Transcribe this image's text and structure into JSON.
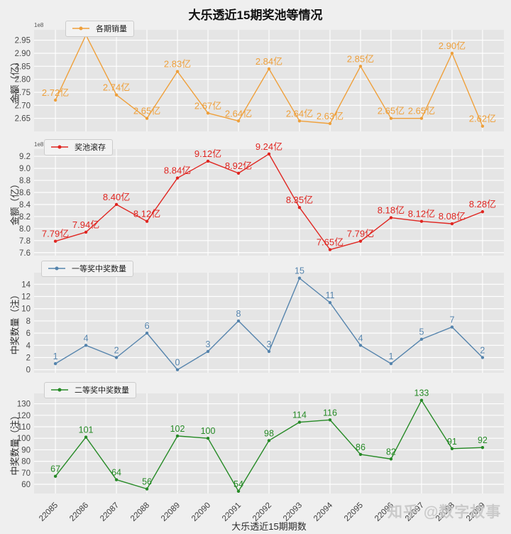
{
  "title": "大乐透近15期奖池等情况",
  "xlabel": "大乐透近15期期数",
  "watermark": "知乎 @数字故事",
  "categories": [
    "22085",
    "22086",
    "22087",
    "22088",
    "22089",
    "22090",
    "22091",
    "22092",
    "22093",
    "22094",
    "22095",
    "22096",
    "22097",
    "22098",
    "22099"
  ],
  "chart_data": [
    {
      "type": "line",
      "legend": "各期销量",
      "color": "#efa03b",
      "ylabel": "金额（亿）",
      "offset_text": "1e8",
      "ylim": [
        2.6,
        2.99
      ],
      "yticks": [
        2.65,
        2.7,
        2.75,
        2.8,
        2.85,
        2.9,
        2.95
      ],
      "ytick_labels": [
        "2.65",
        "2.70",
        "2.75",
        "2.80",
        "2.85",
        "2.90",
        "2.95"
      ],
      "values": [
        2.72,
        2.97,
        2.74,
        2.65,
        2.83,
        2.67,
        2.64,
        2.84,
        2.64,
        2.63,
        2.85,
        2.65,
        2.65,
        2.9,
        2.62
      ],
      "labels": [
        "2.72亿",
        "2.97亿",
        "2.74亿",
        "2.65亿",
        "2.83亿",
        "2.67亿",
        "2.64亿",
        "2.84亿",
        "2.64亿",
        "2.63亿",
        "2.85亿",
        "2.65亿",
        "2.65亿",
        "2.90亿",
        "2.62亿"
      ],
      "grid": true,
      "legend_position": "top-left"
    },
    {
      "type": "line",
      "legend": "奖池滚存",
      "color": "#e02621",
      "ylabel": "金额（亿）",
      "offset_text": "1e8",
      "ylim": [
        7.55,
        9.32
      ],
      "yticks": [
        7.6,
        7.8,
        8.0,
        8.2,
        8.4,
        8.6,
        8.8,
        9.0,
        9.2
      ],
      "ytick_labels": [
        "7.6",
        "7.8",
        "8.0",
        "8.2",
        "8.4",
        "8.6",
        "8.8",
        "9.0",
        "9.2"
      ],
      "values": [
        7.79,
        7.94,
        8.4,
        8.12,
        8.84,
        9.12,
        8.92,
        9.24,
        8.35,
        7.65,
        7.79,
        8.18,
        8.12,
        8.08,
        8.28
      ],
      "labels": [
        "7.79亿",
        "7.94亿",
        "8.40亿",
        "8.12亿",
        "8.84亿",
        "9.12亿",
        "8.92亿",
        "9.24亿",
        "8.35亿",
        "7.65亿",
        "7.79亿",
        "8.18亿",
        "8.12亿",
        "8.08亿",
        "8.28亿"
      ],
      "grid": true,
      "legend_position": "top-left"
    },
    {
      "type": "line",
      "legend": "一等奖中奖数量",
      "color": "#5584ad",
      "ylabel": "中奖数量（注）",
      "ylim": [
        -0.5,
        15.9
      ],
      "yticks": [
        0,
        2,
        4,
        6,
        8,
        10,
        12,
        14
      ],
      "ytick_labels": [
        "0",
        "2",
        "4",
        "6",
        "8",
        "10",
        "12",
        "14"
      ],
      "values": [
        1,
        4,
        2,
        6,
        0,
        3,
        8,
        3,
        15,
        11,
        4,
        1,
        5,
        7,
        2
      ],
      "labels": [
        "1",
        "4",
        "2",
        "6",
        "0",
        "3",
        "8",
        "3",
        "15",
        "11",
        "4",
        "1",
        "5",
        "7",
        "2"
      ],
      "grid": true,
      "legend_position": "top-left"
    },
    {
      "type": "line",
      "legend": "二等奖中奖数量",
      "color": "#268a26",
      "ylabel": "中奖数量（注）",
      "ylim": [
        52,
        139
      ],
      "yticks": [
        60,
        70,
        80,
        90,
        100,
        110,
        120,
        130
      ],
      "ytick_labels": [
        "60",
        "70",
        "80",
        "90",
        "100",
        "110",
        "120",
        "130"
      ],
      "values": [
        67,
        101,
        64,
        56,
        102,
        100,
        54,
        98,
        114,
        116,
        86,
        82,
        133,
        91,
        92
      ],
      "labels": [
        "67",
        "101",
        "64",
        "56",
        "102",
        "100",
        "54",
        "98",
        "114",
        "116",
        "86",
        "82",
        "133",
        "91",
        "92"
      ],
      "grid": true,
      "legend_position": "top-left"
    }
  ]
}
